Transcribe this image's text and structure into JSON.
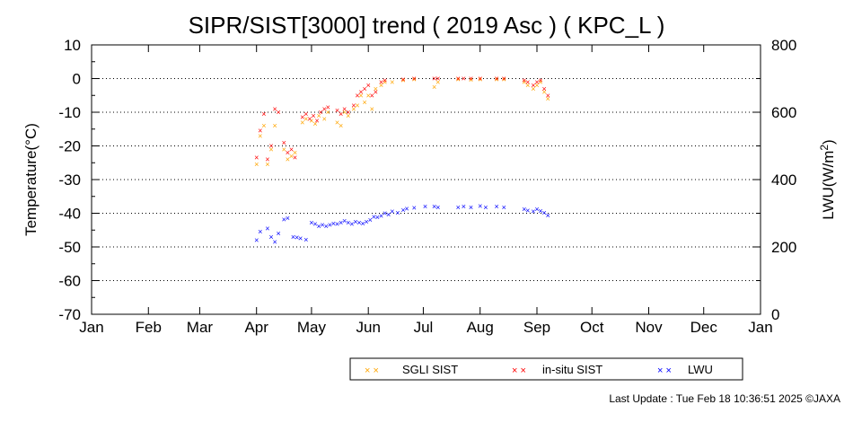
{
  "chart_data": {
    "type": "scatter",
    "title": "SIPR/SIST[3000] trend ( 2019 Asc ) ( KPC_L )",
    "ylabel": "Temperature(°C)",
    "ylabel_right": "LWU(W/m²)",
    "ylim": [
      -70,
      10
    ],
    "ylim_right": [
      0,
      800
    ],
    "yticks": [
      "10",
      "0",
      "-10",
      "-20",
      "-30",
      "-40",
      "-50",
      "-60",
      "-70"
    ],
    "yticks_right": [
      "800",
      "600",
      "400",
      "200",
      "0"
    ],
    "xticks": [
      "Jan",
      "Feb",
      "Mar",
      "Apr",
      "May",
      "Jun",
      "Jul",
      "Aug",
      "Sep",
      "Oct",
      "Nov",
      "Dec",
      "Jan"
    ],
    "grid": "dotted horizontal",
    "legend_position": "bottom-right",
    "series": [
      {
        "name": "SGLI SIST",
        "color": "#FFA500",
        "axis": "left",
        "points": [
          [
            "2019-04-01",
            -25.5
          ],
          [
            "2019-04-03",
            -17
          ],
          [
            "2019-04-05",
            -14
          ],
          [
            "2019-04-07",
            -25.5
          ],
          [
            "2019-04-09",
            -21
          ],
          [
            "2019-04-11",
            -14
          ],
          [
            "2019-04-16",
            -21
          ],
          [
            "2019-04-18",
            -24
          ],
          [
            "2019-04-20",
            -23
          ],
          [
            "2019-04-22",
            -22
          ],
          [
            "2019-04-26",
            -13
          ],
          [
            "2019-04-28",
            -12
          ],
          [
            "2019-05-01",
            -12.5
          ],
          [
            "2019-05-03",
            -13.5
          ],
          [
            "2019-05-05",
            -11
          ],
          [
            "2019-05-08",
            -12
          ],
          [
            "2019-05-10",
            -10
          ],
          [
            "2019-05-15",
            -13
          ],
          [
            "2019-05-17",
            -14
          ],
          [
            "2019-05-19",
            -10
          ],
          [
            "2019-05-21",
            -11
          ],
          [
            "2019-05-24",
            -9
          ],
          [
            "2019-05-26",
            -8
          ],
          [
            "2019-05-28",
            -5
          ],
          [
            "2019-05-30",
            -7
          ],
          [
            "2019-06-01",
            -5
          ],
          [
            "2019-06-03",
            -9
          ],
          [
            "2019-06-05",
            -3
          ],
          [
            "2019-06-08",
            -2
          ],
          [
            "2019-06-10",
            -1
          ],
          [
            "2019-06-14",
            -1
          ],
          [
            "2019-06-20",
            -0.5
          ],
          [
            "2019-06-26",
            -0.3
          ],
          [
            "2019-07-07",
            -2.5
          ],
          [
            "2019-07-09",
            -1
          ],
          [
            "2019-07-20",
            -0.2
          ],
          [
            "2019-07-27",
            -0.4
          ],
          [
            "2019-08-01",
            -0.3
          ],
          [
            "2019-08-10",
            -0.2
          ],
          [
            "2019-08-14",
            -0.3
          ],
          [
            "2019-08-25",
            -1
          ],
          [
            "2019-08-27",
            -2
          ],
          [
            "2019-08-30",
            -3
          ],
          [
            "2019-09-01",
            -2
          ],
          [
            "2019-09-03",
            -1
          ],
          [
            "2019-09-05",
            -4
          ],
          [
            "2019-09-07",
            -6
          ]
        ]
      },
      {
        "name": "in-situ SIST",
        "color": "#FF0000",
        "axis": "left",
        "points": [
          [
            "2019-04-01",
            -23.5
          ],
          [
            "2019-04-03",
            -15.5
          ],
          [
            "2019-04-05",
            -10.5
          ],
          [
            "2019-04-07",
            -24
          ],
          [
            "2019-04-09",
            -20
          ],
          [
            "2019-04-11",
            -9
          ],
          [
            "2019-04-13",
            -10
          ],
          [
            "2019-04-16",
            -19
          ],
          [
            "2019-04-18",
            -22
          ],
          [
            "2019-04-20",
            -21
          ],
          [
            "2019-04-22",
            -23.5
          ],
          [
            "2019-04-26",
            -11.5
          ],
          [
            "2019-04-28",
            -10.5
          ],
          [
            "2019-04-30",
            -12
          ],
          [
            "2019-05-02",
            -11
          ],
          [
            "2019-05-04",
            -12.5
          ],
          [
            "2019-05-06",
            -10
          ],
          [
            "2019-05-08",
            -9
          ],
          [
            "2019-05-10",
            -8.5
          ],
          [
            "2019-05-15",
            -9.5
          ],
          [
            "2019-05-17",
            -10.5
          ],
          [
            "2019-05-19",
            -9
          ],
          [
            "2019-05-21",
            -10
          ],
          [
            "2019-05-24",
            -8
          ],
          [
            "2019-05-26",
            -5
          ],
          [
            "2019-05-28",
            -4
          ],
          [
            "2019-05-30",
            -3
          ],
          [
            "2019-06-01",
            -2
          ],
          [
            "2019-06-03",
            -5
          ],
          [
            "2019-06-05",
            -4
          ],
          [
            "2019-06-08",
            -1
          ],
          [
            "2019-06-10",
            -0.5
          ],
          [
            "2019-06-20",
            -0.2
          ],
          [
            "2019-06-26",
            0
          ],
          [
            "2019-07-07",
            0
          ],
          [
            "2019-07-09",
            0
          ],
          [
            "2019-07-20",
            0
          ],
          [
            "2019-07-23",
            0
          ],
          [
            "2019-07-27",
            0
          ],
          [
            "2019-08-01",
            0
          ],
          [
            "2019-08-10",
            0
          ],
          [
            "2019-08-14",
            0
          ],
          [
            "2019-08-25",
            -0.5
          ],
          [
            "2019-08-27",
            -1
          ],
          [
            "2019-08-30",
            -2
          ],
          [
            "2019-09-01",
            -1
          ],
          [
            "2019-09-03",
            -0.5
          ],
          [
            "2019-09-05",
            -3
          ],
          [
            "2019-09-07",
            -5
          ]
        ]
      },
      {
        "name": "LWU",
        "color": "#0000FF",
        "axis": "right",
        "points": [
          [
            "2019-04-01",
            220
          ],
          [
            "2019-04-03",
            245
          ],
          [
            "2019-04-07",
            255
          ],
          [
            "2019-04-09",
            230
          ],
          [
            "2019-04-11",
            215
          ],
          [
            "2019-04-13",
            240
          ],
          [
            "2019-04-16",
            282
          ],
          [
            "2019-04-18",
            285
          ],
          [
            "2019-04-21",
            230
          ],
          [
            "2019-04-23",
            228
          ],
          [
            "2019-04-25",
            225
          ],
          [
            "2019-04-28",
            222
          ],
          [
            "2019-05-01",
            272
          ],
          [
            "2019-05-03",
            268
          ],
          [
            "2019-05-05",
            262
          ],
          [
            "2019-05-07",
            265
          ],
          [
            "2019-05-09",
            262
          ],
          [
            "2019-05-11",
            265
          ],
          [
            "2019-05-13",
            270
          ],
          [
            "2019-05-15",
            268
          ],
          [
            "2019-05-17",
            272
          ],
          [
            "2019-05-19",
            278
          ],
          [
            "2019-05-21",
            272
          ],
          [
            "2019-05-23",
            268
          ],
          [
            "2019-05-25",
            275
          ],
          [
            "2019-05-27",
            272
          ],
          [
            "2019-05-29",
            270
          ],
          [
            "2019-05-31",
            275
          ],
          [
            "2019-06-02",
            280
          ],
          [
            "2019-06-04",
            290
          ],
          [
            "2019-06-06",
            288
          ],
          [
            "2019-06-08",
            292
          ],
          [
            "2019-06-10",
            300
          ],
          [
            "2019-06-12",
            296
          ],
          [
            "2019-06-14",
            305
          ],
          [
            "2019-06-17",
            302
          ],
          [
            "2019-06-20",
            310
          ],
          [
            "2019-06-22",
            313
          ],
          [
            "2019-06-26",
            316
          ],
          [
            "2019-07-02",
            320
          ],
          [
            "2019-07-07",
            320
          ],
          [
            "2019-07-09",
            317
          ],
          [
            "2019-07-20",
            318
          ],
          [
            "2019-07-23",
            320
          ],
          [
            "2019-07-27",
            318
          ],
          [
            "2019-08-01",
            322
          ],
          [
            "2019-08-04",
            318
          ],
          [
            "2019-08-10",
            320
          ],
          [
            "2019-08-14",
            317
          ],
          [
            "2019-08-25",
            312
          ],
          [
            "2019-08-27",
            308
          ],
          [
            "2019-08-30",
            306
          ],
          [
            "2019-09-01",
            312
          ],
          [
            "2019-09-03",
            307
          ],
          [
            "2019-09-05",
            302
          ],
          [
            "2019-09-07",
            294
          ]
        ]
      }
    ]
  },
  "legend": {
    "items": [
      {
        "label": "SGLI SIST",
        "marker": "× ×",
        "color": "#FFA500"
      },
      {
        "label": "in-situ SIST",
        "marker": "× ×",
        "color": "#FF0000"
      },
      {
        "label": "LWU",
        "marker": "× ×",
        "color": "#0000FF"
      }
    ]
  },
  "footer": {
    "last_update": "Last Update : Tue Feb 18 10:36:51 2025  ©JAXA"
  }
}
